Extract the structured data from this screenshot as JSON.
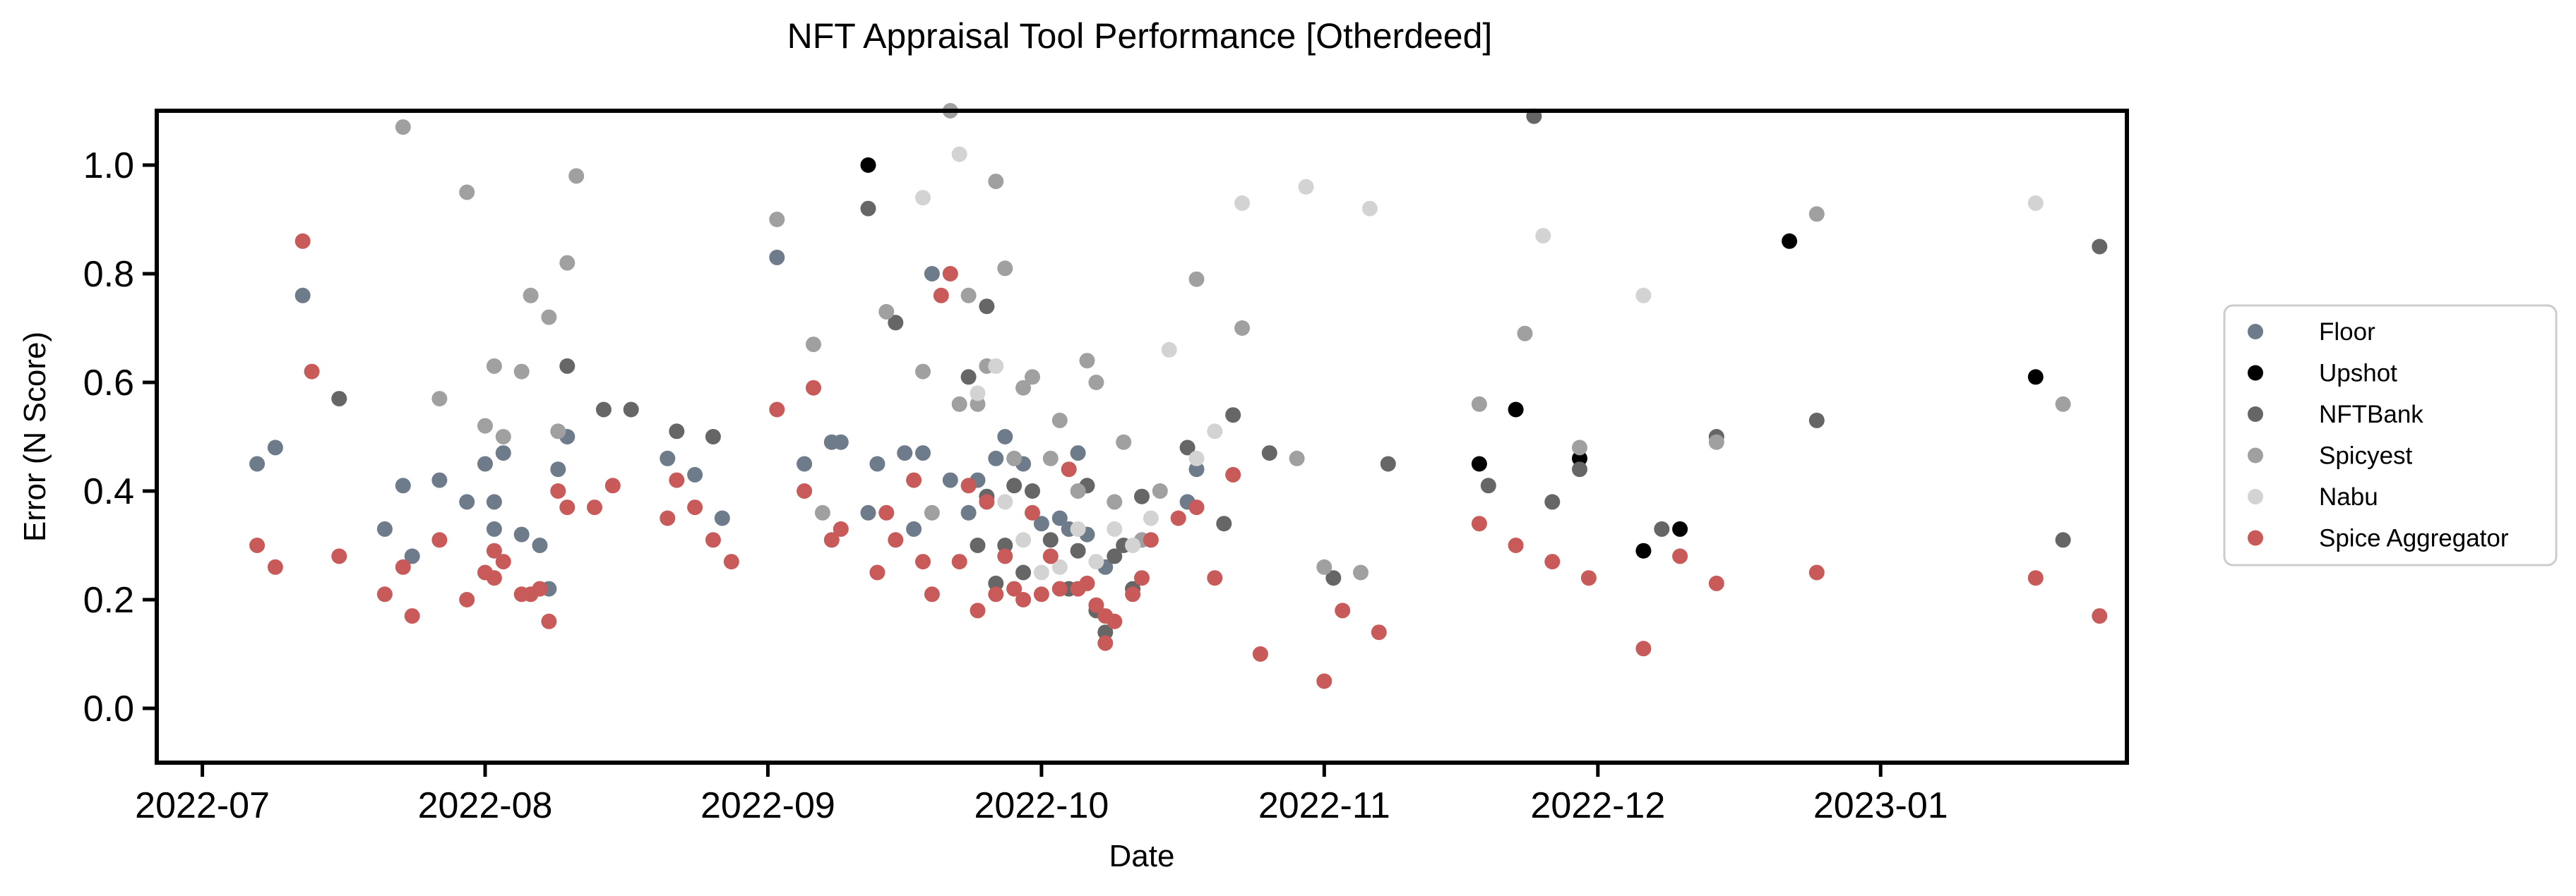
{
  "chart_data": {
    "type": "scatter",
    "title": "NFT Appraisal Tool Performance [Otherdeed]",
    "xlabel": "Date",
    "ylabel": "Error (N Score)",
    "x_axis_type": "date",
    "xlim": [
      "2022-06-26",
      "2023-01-28"
    ],
    "ylim": [
      -0.1,
      1.1
    ],
    "x_ticks": [
      "2022-07",
      "2022-08",
      "2022-09",
      "2022-10",
      "2022-11",
      "2022-12",
      "2023-01"
    ],
    "y_ticks": [
      "0.0",
      "0.2",
      "0.4",
      "0.6",
      "0.8",
      "1.0"
    ],
    "grid": false,
    "legend_position": "right-outside",
    "series": [
      {
        "name": "Floor",
        "color": "#6e7b8b",
        "points": [
          [
            "2022-07-07",
            0.45
          ],
          [
            "2022-07-09",
            0.48
          ],
          [
            "2022-07-12",
            0.76
          ],
          [
            "2022-07-21",
            0.33
          ],
          [
            "2022-07-23",
            0.41
          ],
          [
            "2022-07-24",
            0.28
          ],
          [
            "2022-07-27",
            0.42
          ],
          [
            "2022-07-30",
            0.38
          ],
          [
            "2022-08-01",
            0.45
          ],
          [
            "2022-08-02",
            0.38
          ],
          [
            "2022-08-02",
            0.33
          ],
          [
            "2022-08-03",
            0.47
          ],
          [
            "2022-08-05",
            0.32
          ],
          [
            "2022-08-07",
            0.3
          ],
          [
            "2022-08-08",
            0.22
          ],
          [
            "2022-08-09",
            0.44
          ],
          [
            "2022-08-10",
            0.5
          ],
          [
            "2022-08-21",
            0.46
          ],
          [
            "2022-08-24",
            0.43
          ],
          [
            "2022-08-27",
            0.35
          ],
          [
            "2022-09-02",
            0.83
          ],
          [
            "2022-09-05",
            0.45
          ],
          [
            "2022-09-08",
            0.49
          ],
          [
            "2022-09-09",
            0.49
          ],
          [
            "2022-09-12",
            0.36
          ],
          [
            "2022-09-13",
            0.45
          ],
          [
            "2022-09-16",
            0.47
          ],
          [
            "2022-09-17",
            0.33
          ],
          [
            "2022-09-18",
            0.47
          ],
          [
            "2022-09-19",
            0.8
          ],
          [
            "2022-09-21",
            0.42
          ],
          [
            "2022-09-23",
            0.36
          ],
          [
            "2022-09-24",
            0.42
          ],
          [
            "2022-09-26",
            0.46
          ],
          [
            "2022-09-27",
            0.5
          ],
          [
            "2022-09-29",
            0.45
          ],
          [
            "2022-10-01",
            0.34
          ],
          [
            "2022-10-03",
            0.35
          ],
          [
            "2022-10-04",
            0.33
          ],
          [
            "2022-10-05",
            0.47
          ],
          [
            "2022-10-06",
            0.32
          ],
          [
            "2022-10-08",
            0.26
          ],
          [
            "2022-10-17",
            0.38
          ],
          [
            "2022-10-18",
            0.44
          ]
        ]
      },
      {
        "name": "Upshot",
        "color": "#000000",
        "points": [
          [
            "2022-09-12",
            1.0
          ],
          [
            "2022-11-18",
            0.45
          ],
          [
            "2022-11-22",
            0.55
          ],
          [
            "2022-11-29",
            0.46
          ],
          [
            "2022-12-06",
            0.29
          ],
          [
            "2022-12-10",
            0.33
          ],
          [
            "2022-12-22",
            0.86
          ],
          [
            "2023-01-18",
            0.61
          ]
        ]
      },
      {
        "name": "NFTBank",
        "color": "#666666",
        "points": [
          [
            "2022-07-16",
            0.57
          ],
          [
            "2022-08-10",
            0.63
          ],
          [
            "2022-08-14",
            0.55
          ],
          [
            "2022-08-17",
            0.55
          ],
          [
            "2022-08-22",
            0.51
          ],
          [
            "2022-08-26",
            0.5
          ],
          [
            "2022-09-12",
            0.92
          ],
          [
            "2022-09-15",
            0.71
          ],
          [
            "2022-09-23",
            0.61
          ],
          [
            "2022-09-24",
            0.3
          ],
          [
            "2022-09-25",
            0.74
          ],
          [
            "2022-09-25",
            0.39
          ],
          [
            "2022-09-26",
            0.23
          ],
          [
            "2022-09-27",
            0.3
          ],
          [
            "2022-09-28",
            0.41
          ],
          [
            "2022-09-29",
            0.25
          ],
          [
            "2022-09-30",
            0.4
          ],
          [
            "2022-10-02",
            0.31
          ],
          [
            "2022-10-04",
            0.22
          ],
          [
            "2022-10-05",
            0.29
          ],
          [
            "2022-10-06",
            0.41
          ],
          [
            "2022-10-07",
            0.18
          ],
          [
            "2022-10-08",
            0.14
          ],
          [
            "2022-10-09",
            0.28
          ],
          [
            "2022-10-10",
            0.3
          ],
          [
            "2022-10-11",
            0.22
          ],
          [
            "2022-10-12",
            0.39
          ],
          [
            "2022-10-17",
            0.48
          ],
          [
            "2022-10-21",
            0.34
          ],
          [
            "2022-10-22",
            0.54
          ],
          [
            "2022-10-26",
            0.47
          ],
          [
            "2022-11-02",
            0.24
          ],
          [
            "2022-11-08",
            0.45
          ],
          [
            "2022-11-19",
            0.41
          ],
          [
            "2022-11-24",
            1.09
          ],
          [
            "2022-11-26",
            0.38
          ],
          [
            "2022-11-29",
            0.44
          ],
          [
            "2022-12-08",
            0.33
          ],
          [
            "2022-12-14",
            0.5
          ],
          [
            "2022-12-25",
            0.53
          ],
          [
            "2023-01-21",
            0.31
          ],
          [
            "2023-01-25",
            0.85
          ]
        ]
      },
      {
        "name": "Spicyest",
        "color": "#a0a0a0",
        "points": [
          [
            "2022-07-23",
            1.07
          ],
          [
            "2022-07-27",
            0.57
          ],
          [
            "2022-07-30",
            0.95
          ],
          [
            "2022-08-01",
            0.52
          ],
          [
            "2022-08-02",
            0.63
          ],
          [
            "2022-08-03",
            0.5
          ],
          [
            "2022-08-05",
            0.62
          ],
          [
            "2022-08-06",
            0.76
          ],
          [
            "2022-08-08",
            0.72
          ],
          [
            "2022-08-09",
            0.51
          ],
          [
            "2022-08-10",
            0.82
          ],
          [
            "2022-08-11",
            0.98
          ],
          [
            "2022-09-02",
            0.9
          ],
          [
            "2022-09-06",
            0.67
          ],
          [
            "2022-09-07",
            0.36
          ],
          [
            "2022-09-14",
            0.73
          ],
          [
            "2022-09-18",
            0.62
          ],
          [
            "2022-09-19",
            0.36
          ],
          [
            "2022-09-21",
            1.1
          ],
          [
            "2022-09-22",
            0.56
          ],
          [
            "2022-09-23",
            0.76
          ],
          [
            "2022-09-24",
            0.56
          ],
          [
            "2022-09-25",
            0.63
          ],
          [
            "2022-09-26",
            0.97
          ],
          [
            "2022-09-27",
            0.81
          ],
          [
            "2022-09-28",
            0.46
          ],
          [
            "2022-09-29",
            0.59
          ],
          [
            "2022-09-30",
            0.61
          ],
          [
            "2022-10-02",
            0.46
          ],
          [
            "2022-10-03",
            0.53
          ],
          [
            "2022-10-05",
            0.4
          ],
          [
            "2022-10-06",
            0.64
          ],
          [
            "2022-10-07",
            0.6
          ],
          [
            "2022-10-09",
            0.38
          ],
          [
            "2022-10-10",
            0.49
          ],
          [
            "2022-10-12",
            0.31
          ],
          [
            "2022-10-14",
            0.4
          ],
          [
            "2022-10-18",
            0.79
          ],
          [
            "2022-10-23",
            0.7
          ],
          [
            "2022-10-29",
            0.46
          ],
          [
            "2022-11-01",
            0.26
          ],
          [
            "2022-11-05",
            0.25
          ],
          [
            "2022-11-18",
            0.56
          ],
          [
            "2022-11-23",
            0.69
          ],
          [
            "2022-11-29",
            0.48
          ],
          [
            "2022-12-14",
            0.49
          ],
          [
            "2022-12-25",
            0.91
          ],
          [
            "2023-01-21",
            0.56
          ]
        ]
      },
      {
        "name": "Nabu",
        "color": "#d3d3d3",
        "points": [
          [
            "2022-09-18",
            0.94
          ],
          [
            "2022-09-22",
            1.02
          ],
          [
            "2022-09-24",
            0.58
          ],
          [
            "2022-09-26",
            0.63
          ],
          [
            "2022-09-27",
            0.38
          ],
          [
            "2022-09-29",
            0.31
          ],
          [
            "2022-10-01",
            0.25
          ],
          [
            "2022-10-03",
            0.26
          ],
          [
            "2022-10-05",
            0.33
          ],
          [
            "2022-10-07",
            0.27
          ],
          [
            "2022-10-09",
            0.33
          ],
          [
            "2022-10-11",
            0.3
          ],
          [
            "2022-10-13",
            0.35
          ],
          [
            "2022-10-15",
            0.66
          ],
          [
            "2022-10-18",
            0.46
          ],
          [
            "2022-10-20",
            0.51
          ],
          [
            "2022-10-23",
            0.93
          ],
          [
            "2022-10-30",
            0.96
          ],
          [
            "2022-11-06",
            0.92
          ],
          [
            "2022-11-25",
            0.87
          ],
          [
            "2022-12-06",
            0.76
          ],
          [
            "2023-01-18",
            0.93
          ]
        ]
      },
      {
        "name": "Spice Aggregator",
        "color": "#c85a5a",
        "points": [
          [
            "2022-07-07",
            0.3
          ],
          [
            "2022-07-09",
            0.26
          ],
          [
            "2022-07-12",
            0.86
          ],
          [
            "2022-07-13",
            0.62
          ],
          [
            "2022-07-16",
            0.28
          ],
          [
            "2022-07-21",
            0.21
          ],
          [
            "2022-07-23",
            0.26
          ],
          [
            "2022-07-24",
            0.17
          ],
          [
            "2022-07-27",
            0.31
          ],
          [
            "2022-07-30",
            0.2
          ],
          [
            "2022-08-01",
            0.25
          ],
          [
            "2022-08-02",
            0.24
          ],
          [
            "2022-08-02",
            0.29
          ],
          [
            "2022-08-03",
            0.27
          ],
          [
            "2022-08-05",
            0.21
          ],
          [
            "2022-08-06",
            0.21
          ],
          [
            "2022-08-07",
            0.22
          ],
          [
            "2022-08-08",
            0.16
          ],
          [
            "2022-08-09",
            0.4
          ],
          [
            "2022-08-10",
            0.37
          ],
          [
            "2022-08-13",
            0.37
          ],
          [
            "2022-08-15",
            0.41
          ],
          [
            "2022-08-21",
            0.35
          ],
          [
            "2022-08-22",
            0.42
          ],
          [
            "2022-08-24",
            0.37
          ],
          [
            "2022-08-26",
            0.31
          ],
          [
            "2022-08-28",
            0.27
          ],
          [
            "2022-09-02",
            0.55
          ],
          [
            "2022-09-05",
            0.4
          ],
          [
            "2022-09-06",
            0.59
          ],
          [
            "2022-09-08",
            0.31
          ],
          [
            "2022-09-09",
            0.33
          ],
          [
            "2022-09-13",
            0.25
          ],
          [
            "2022-09-14",
            0.36
          ],
          [
            "2022-09-15",
            0.31
          ],
          [
            "2022-09-17",
            0.42
          ],
          [
            "2022-09-18",
            0.27
          ],
          [
            "2022-09-19",
            0.21
          ],
          [
            "2022-09-20",
            0.76
          ],
          [
            "2022-09-21",
            0.8
          ],
          [
            "2022-09-22",
            0.27
          ],
          [
            "2022-09-23",
            0.41
          ],
          [
            "2022-09-24",
            0.18
          ],
          [
            "2022-09-25",
            0.38
          ],
          [
            "2022-09-26",
            0.21
          ],
          [
            "2022-09-27",
            0.28
          ],
          [
            "2022-09-28",
            0.22
          ],
          [
            "2022-09-29",
            0.2
          ],
          [
            "2022-09-30",
            0.36
          ],
          [
            "2022-10-01",
            0.21
          ],
          [
            "2022-10-02",
            0.28
          ],
          [
            "2022-10-03",
            0.22
          ],
          [
            "2022-10-04",
            0.44
          ],
          [
            "2022-10-05",
            0.22
          ],
          [
            "2022-10-06",
            0.23
          ],
          [
            "2022-10-07",
            0.19
          ],
          [
            "2022-10-08",
            0.12
          ],
          [
            "2022-10-08",
            0.17
          ],
          [
            "2022-10-09",
            0.16
          ],
          [
            "2022-10-11",
            0.21
          ],
          [
            "2022-10-12",
            0.24
          ],
          [
            "2022-10-13",
            0.31
          ],
          [
            "2022-10-16",
            0.35
          ],
          [
            "2022-10-18",
            0.37
          ],
          [
            "2022-10-20",
            0.24
          ],
          [
            "2022-10-22",
            0.43
          ],
          [
            "2022-10-25",
            0.1
          ],
          [
            "2022-11-01",
            0.05
          ],
          [
            "2022-11-03",
            0.18
          ],
          [
            "2022-11-07",
            0.14
          ],
          [
            "2022-11-18",
            0.34
          ],
          [
            "2022-11-22",
            0.3
          ],
          [
            "2022-11-26",
            0.27
          ],
          [
            "2022-11-30",
            0.24
          ],
          [
            "2022-12-06",
            0.11
          ],
          [
            "2022-12-10",
            0.28
          ],
          [
            "2022-12-14",
            0.23
          ],
          [
            "2022-12-25",
            0.25
          ],
          [
            "2023-01-18",
            0.24
          ],
          [
            "2023-01-25",
            0.17
          ]
        ]
      }
    ]
  }
}
